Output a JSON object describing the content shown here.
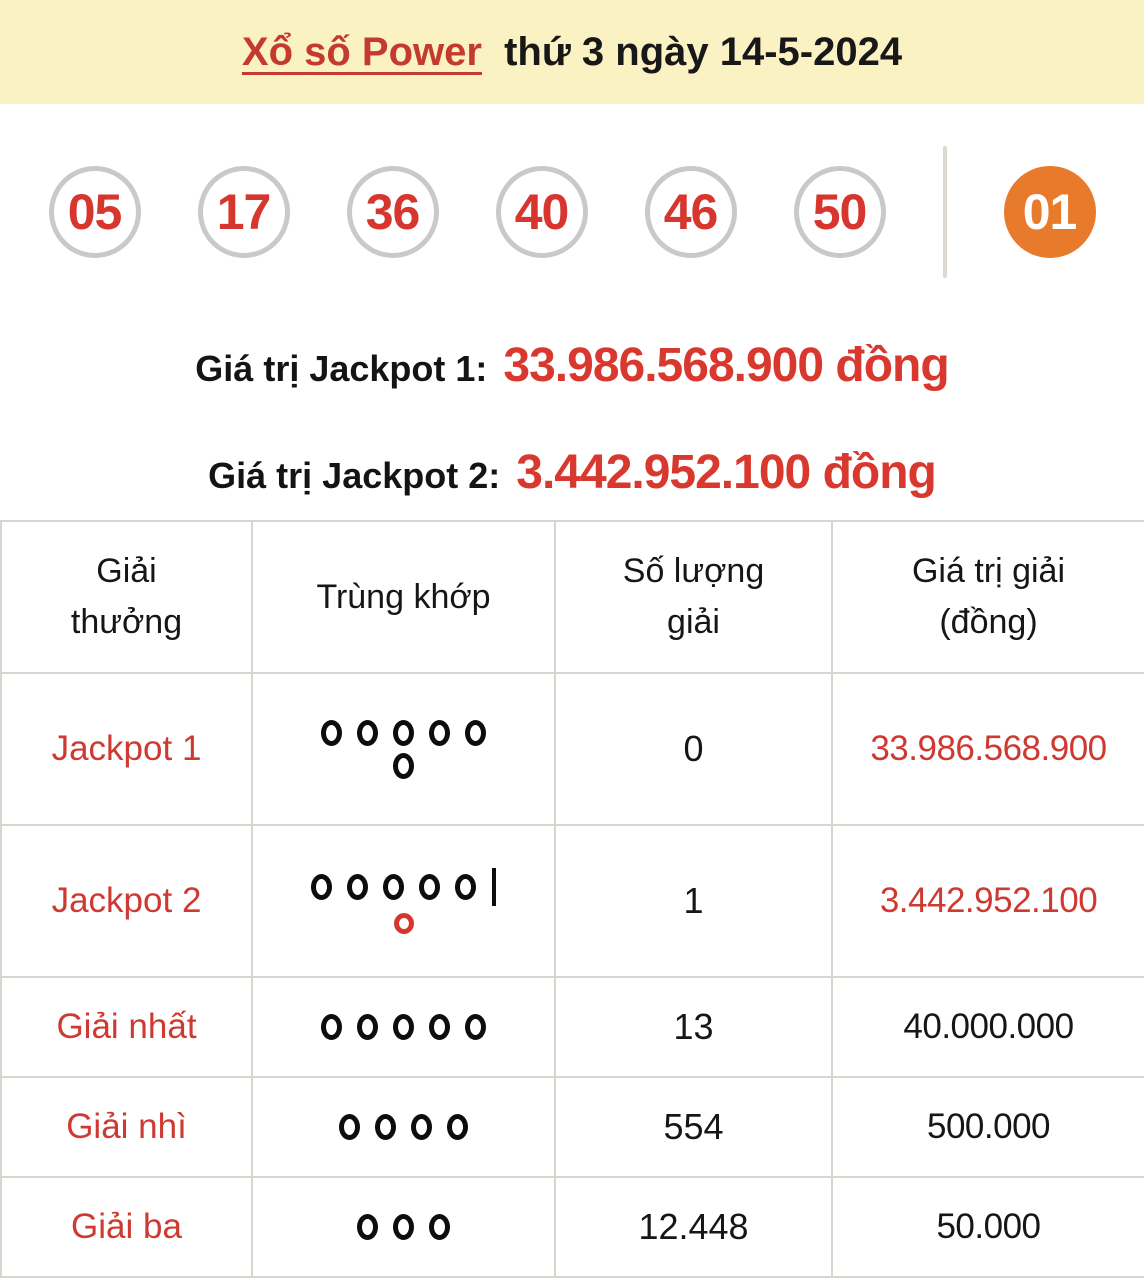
{
  "header": {
    "title_link": "Xổ số Power",
    "title_rest": "thứ 3 ngày 14-5-2024"
  },
  "balls": {
    "main": [
      "05",
      "17",
      "36",
      "40",
      "46",
      "50"
    ],
    "power": "01"
  },
  "jackpots": [
    {
      "label": "Giá trị Jackpot 1:",
      "value": "33.986.568.900 đồng"
    },
    {
      "label": "Giá trị Jackpot 2:",
      "value": "3.442.952.100 đồng"
    }
  ],
  "table": {
    "headers": [
      "Giải thưởng",
      "Trùng khớp",
      "Số lượng giải",
      "Giá trị giải (đồng)"
    ],
    "rows": [
      {
        "prize": "Jackpot 1",
        "match": {
          "circles": 5,
          "bar": false,
          "extra": "black"
        },
        "count": "0",
        "value": "33.986.568.900",
        "value_red": true
      },
      {
        "prize": "Jackpot 2",
        "match": {
          "circles": 5,
          "bar": true,
          "extra": "red"
        },
        "count": "1",
        "value": "3.442.952.100",
        "value_red": true
      },
      {
        "prize": "Giải nhất",
        "match": {
          "circles": 5,
          "bar": false,
          "extra": null
        },
        "count": "13",
        "value": "40.000.000",
        "value_red": false
      },
      {
        "prize": "Giải nhì",
        "match": {
          "circles": 4,
          "bar": false,
          "extra": null
        },
        "count": "554",
        "value": "500.000",
        "value_red": false
      },
      {
        "prize": "Giải ba",
        "match": {
          "circles": 3,
          "bar": false,
          "extra": null
        },
        "count": "12.448",
        "value": "50.000",
        "value_red": false
      }
    ]
  },
  "colors": {
    "banner_background": "#fbf2c3",
    "title_red": "#c43a2f",
    "number_red": "#d6362e",
    "value_red": "#d9382e",
    "table_red": "#ce3931",
    "power_orange": "#e87a2b",
    "ball_border_gray": "#c9c9c9",
    "table_border_gray": "#d8d4ce"
  }
}
